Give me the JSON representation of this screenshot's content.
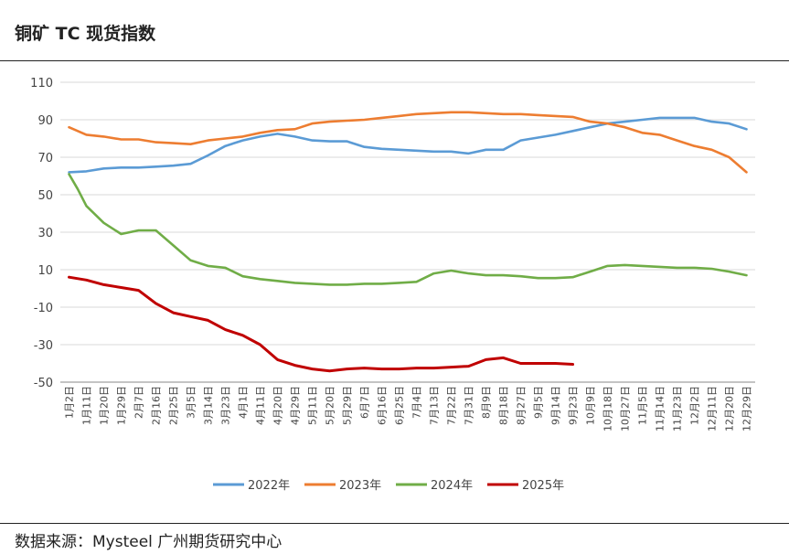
{
  "header": {
    "title": "铜矿 TC 现货指数"
  },
  "footer": {
    "source": "数据来源：Mysteel 广州期货研究中心"
  },
  "chart_data": {
    "type": "line",
    "title": "铜矿 TC 现货指数",
    "xlabel": "",
    "ylabel": "",
    "ylim": [
      -50,
      110
    ],
    "yticks": [
      110,
      90,
      70,
      50,
      30,
      10,
      -10,
      -30,
      -50
    ],
    "grid": true,
    "legend_position": "bottom",
    "x_ticks": [
      "1月2日",
      "1月11日",
      "1月20日",
      "1月29日",
      "2月7日",
      "2月16日",
      "2月25日",
      "3月5日",
      "3月14日",
      "3月23日",
      "4月1日",
      "4月11日",
      "4月20日",
      "4月29日",
      "5月11日",
      "5月20日",
      "5月29日",
      "6月7日",
      "6月16日",
      "6月25日",
      "7月4日",
      "7月13日",
      "7月22日",
      "7月31日",
      "8月9日",
      "8月18日",
      "8月27日",
      "9月5日",
      "9月14日",
      "9月23日",
      "10月9日",
      "10月18日",
      "10月27日",
      "11月5日",
      "11月14日",
      "11月23日",
      "12月2日",
      "12月11日",
      "12月20日",
      "12月29日"
    ],
    "series": [
      {
        "name": "2022年",
        "color": "#5b9bd5",
        "points": [
          [
            0,
            62
          ],
          [
            1,
            62.5
          ],
          [
            2,
            64
          ],
          [
            3,
            64.5
          ],
          [
            4,
            64.5
          ],
          [
            5,
            65
          ],
          [
            6,
            65.5
          ],
          [
            7,
            66.5
          ],
          [
            8,
            71
          ],
          [
            9,
            76
          ],
          [
            10,
            79
          ],
          [
            11,
            81
          ],
          [
            12,
            82.5
          ],
          [
            13,
            81
          ],
          [
            14,
            79
          ],
          [
            15,
            78.5
          ],
          [
            16,
            78.5
          ],
          [
            17,
            75.5
          ],
          [
            18,
            74.5
          ],
          [
            19,
            74
          ],
          [
            20,
            73.5
          ],
          [
            21,
            73
          ],
          [
            22,
            73
          ],
          [
            23,
            72
          ],
          [
            24,
            74
          ],
          [
            25,
            74
          ],
          [
            26,
            79
          ],
          [
            27,
            80.5
          ],
          [
            28,
            82
          ],
          [
            29,
            84
          ],
          [
            30,
            86
          ],
          [
            31,
            88
          ],
          [
            32,
            89
          ],
          [
            33,
            90
          ],
          [
            34,
            91
          ],
          [
            35,
            91
          ],
          [
            36,
            91
          ],
          [
            37,
            89
          ],
          [
            38,
            88
          ],
          [
            39,
            85
          ]
        ]
      },
      {
        "name": "2023年",
        "color": "#ed7d31",
        "points": [
          [
            0,
            86
          ],
          [
            1,
            82
          ],
          [
            2,
            81
          ],
          [
            3,
            79.5
          ],
          [
            4,
            79.5
          ],
          [
            5,
            78
          ],
          [
            6,
            77.5
          ],
          [
            7,
            77
          ],
          [
            8,
            79
          ],
          [
            9,
            80
          ],
          [
            10,
            81
          ],
          [
            11,
            83
          ],
          [
            12,
            84.5
          ],
          [
            13,
            85
          ],
          [
            14,
            88
          ],
          [
            15,
            89
          ],
          [
            16,
            89.5
          ],
          [
            17,
            90
          ],
          [
            18,
            91
          ],
          [
            19,
            92
          ],
          [
            20,
            93
          ],
          [
            21,
            93.5
          ],
          [
            22,
            94
          ],
          [
            23,
            94
          ],
          [
            24,
            93.5
          ],
          [
            25,
            93
          ],
          [
            26,
            93
          ],
          [
            27,
            92.5
          ],
          [
            28,
            92
          ],
          [
            29,
            91.5
          ],
          [
            30,
            89
          ],
          [
            31,
            88
          ],
          [
            32,
            86
          ],
          [
            33,
            83
          ],
          [
            34,
            82
          ],
          [
            35,
            79
          ],
          [
            36,
            76
          ],
          [
            37,
            74
          ],
          [
            38,
            70
          ],
          [
            39,
            62
          ]
        ]
      },
      {
        "name": "2024年",
        "color": "#70ad47",
        "points": [
          [
            0,
            61
          ],
          [
            0.5,
            53
          ],
          [
            1,
            44
          ],
          [
            2,
            35
          ],
          [
            3,
            29
          ],
          [
            4,
            31
          ],
          [
            5,
            31
          ],
          [
            6,
            23
          ],
          [
            7,
            15
          ],
          [
            8,
            12
          ],
          [
            9,
            11
          ],
          [
            10,
            6.5
          ],
          [
            11,
            5
          ],
          [
            12,
            4
          ],
          [
            13,
            3
          ],
          [
            14,
            2.5
          ],
          [
            15,
            2
          ],
          [
            16,
            2
          ],
          [
            17,
            2.5
          ],
          [
            18,
            2.5
          ],
          [
            19,
            3
          ],
          [
            20,
            3.5
          ],
          [
            21,
            8
          ],
          [
            22,
            9.5
          ],
          [
            23,
            8
          ],
          [
            24,
            7
          ],
          [
            25,
            7
          ],
          [
            26,
            6.5
          ],
          [
            27,
            5.5
          ],
          [
            28,
            5.5
          ],
          [
            29,
            6
          ],
          [
            30,
            9
          ],
          [
            31,
            12
          ],
          [
            32,
            12.5
          ],
          [
            33,
            12
          ],
          [
            34,
            11.5
          ],
          [
            35,
            11
          ],
          [
            36,
            11
          ],
          [
            37,
            10.5
          ],
          [
            38,
            9
          ],
          [
            39,
            7
          ]
        ]
      },
      {
        "name": "2025年",
        "color": "#c00000",
        "points": [
          [
            0,
            6
          ],
          [
            1,
            4.5
          ],
          [
            2,
            2
          ],
          [
            3,
            0.5
          ],
          [
            4,
            -1
          ],
          [
            5,
            -8
          ],
          [
            6,
            -13
          ],
          [
            7,
            -15
          ],
          [
            8,
            -17
          ],
          [
            9,
            -22
          ],
          [
            10,
            -25
          ],
          [
            11,
            -30
          ],
          [
            12,
            -38
          ],
          [
            13,
            -41
          ],
          [
            14,
            -43
          ],
          [
            15,
            -44
          ],
          [
            16,
            -43
          ],
          [
            17,
            -42.5
          ],
          [
            18,
            -43
          ],
          [
            19,
            -43
          ],
          [
            20,
            -42.5
          ],
          [
            21,
            -42.5
          ],
          [
            22,
            -42
          ],
          [
            23,
            -41.5
          ],
          [
            24,
            -38
          ],
          [
            25,
            -37
          ],
          [
            26,
            -40
          ],
          [
            27,
            -40
          ],
          [
            28,
            -40
          ],
          [
            29,
            -40.5
          ]
        ]
      }
    ]
  }
}
